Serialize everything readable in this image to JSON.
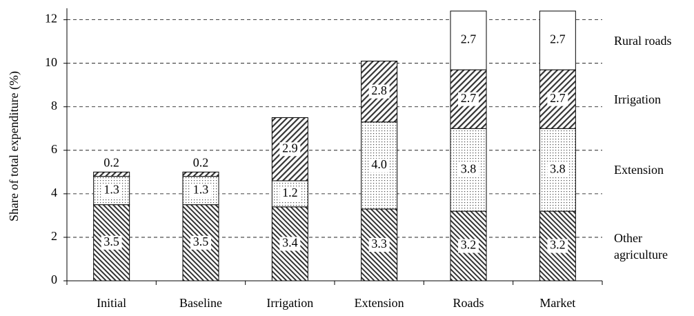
{
  "chart_data": {
    "type": "stacked-bar",
    "y_label": "Share of total expenditure (%)",
    "categories": [
      "Initial",
      "Baseline",
      "Irrigation",
      "Extension",
      "Roads",
      "Market"
    ],
    "series": [
      {
        "name": "Other agriculture",
        "pattern": "backslash",
        "values": [
          3.5,
          3.5,
          3.4,
          3.3,
          3.2,
          3.2
        ]
      },
      {
        "name": "Extension",
        "pattern": "dots",
        "values": [
          1.3,
          1.3,
          1.2,
          4.0,
          3.8,
          3.8
        ],
        "value_labels": [
          "1.3",
          "1.3",
          "1.2",
          "4.0",
          "3.8",
          "3.8"
        ]
      },
      {
        "name": "Irrigation",
        "pattern": "slash",
        "values": [
          0.2,
          0.2,
          2.9,
          2.8,
          2.7,
          2.7
        ]
      },
      {
        "name": "Rural roads",
        "pattern": "none",
        "values": [
          null,
          null,
          null,
          null,
          2.7,
          2.7
        ]
      }
    ],
    "ylim": [
      0,
      12.4
    ],
    "yticks": [
      0,
      2,
      4,
      6,
      8,
      10,
      12
    ],
    "grid": true
  }
}
